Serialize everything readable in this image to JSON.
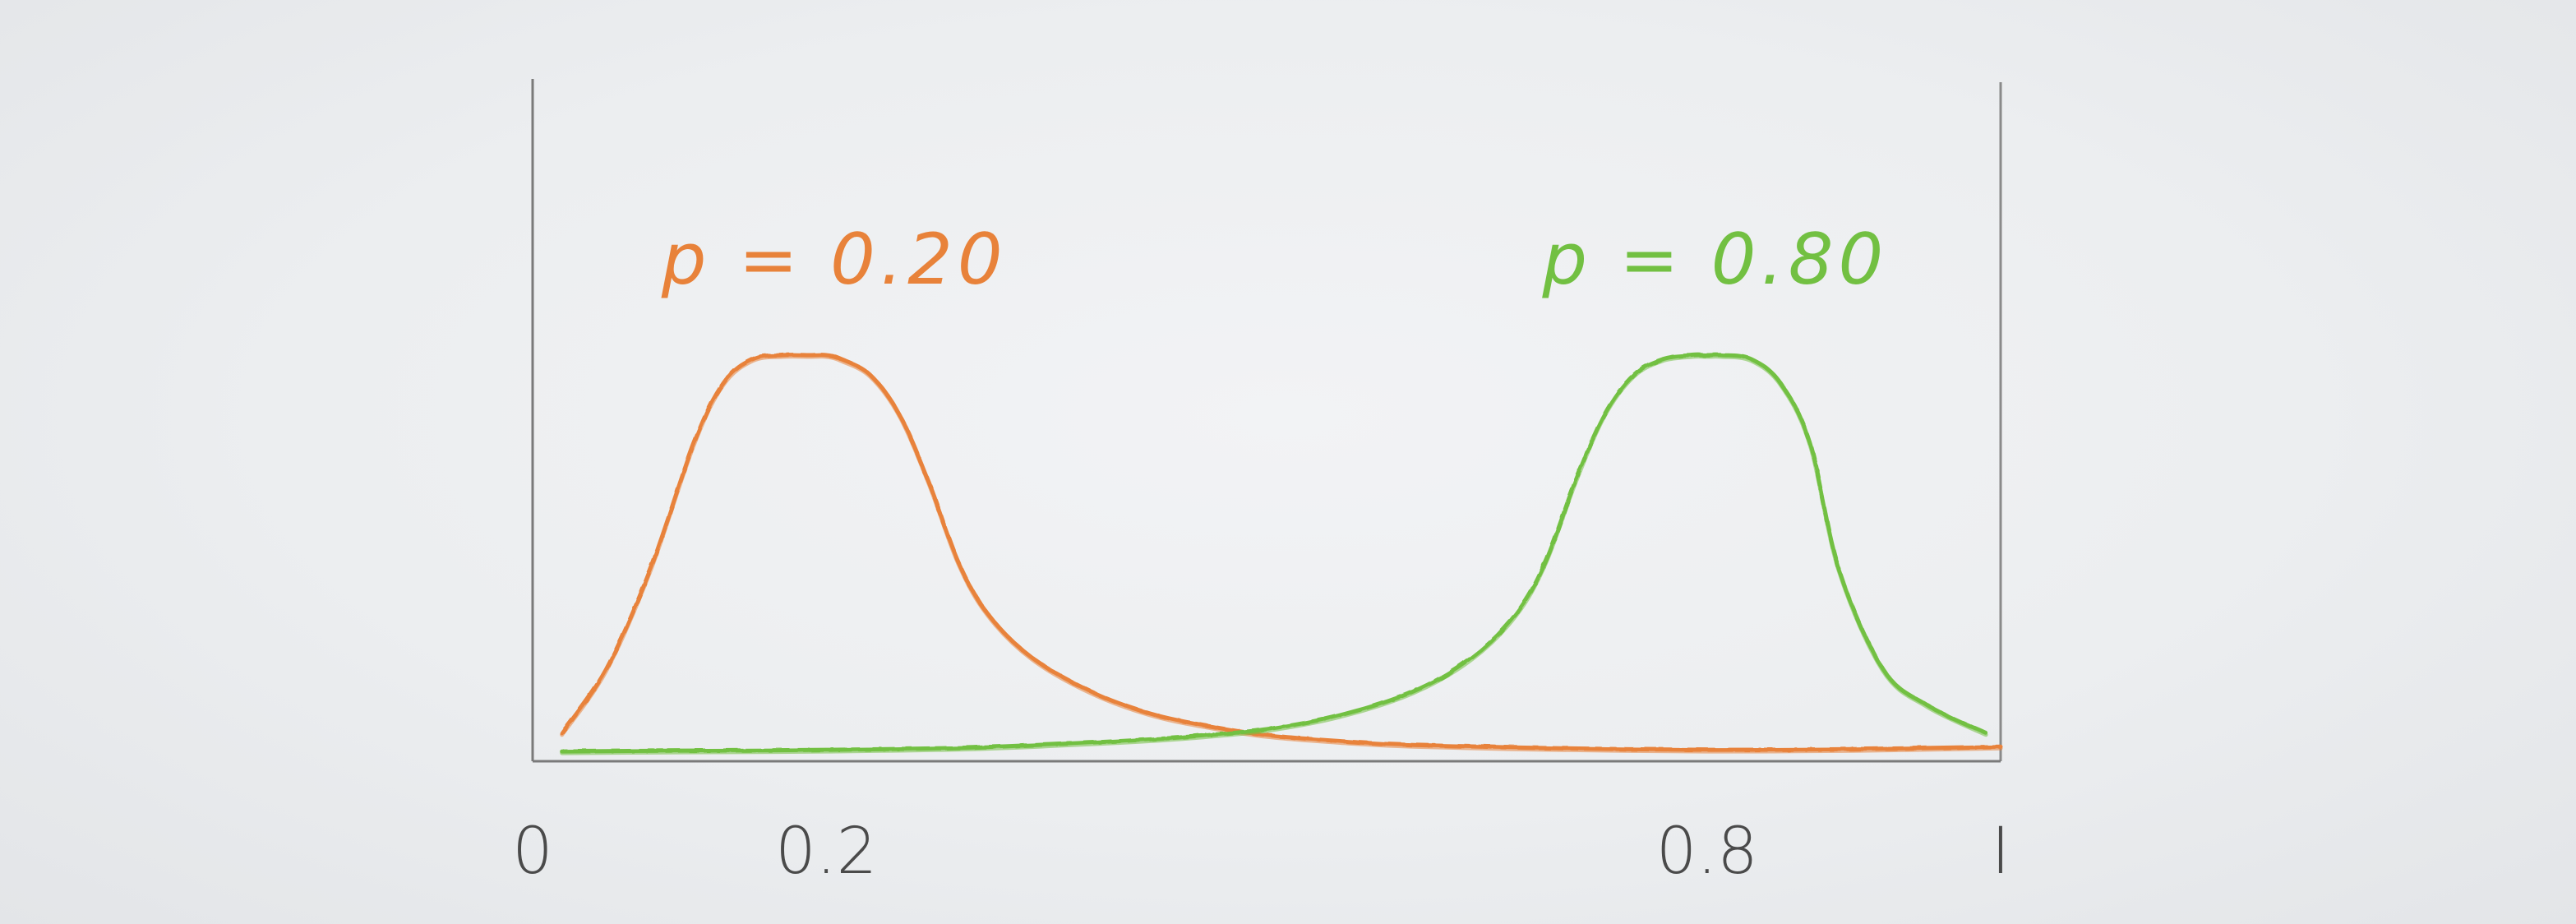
{
  "chart_data": {
    "type": "line",
    "title": "",
    "xlabel": "",
    "ylabel": "",
    "xlim": [
      0,
      1
    ],
    "ylim": [
      0,
      1.1
    ],
    "grid": false,
    "x_ticks": [
      {
        "value": 0,
        "label": "0"
      },
      {
        "value": 0.2,
        "label": "0.2"
      },
      {
        "value": 0.8,
        "label": "0.8"
      },
      {
        "value": 1,
        "label": "I"
      }
    ],
    "series": [
      {
        "name": "p = 0.20",
        "color": "#e8823a",
        "peak_x": 0.2,
        "x": [
          0.02,
          0.05,
          0.08,
          0.11,
          0.13,
          0.15,
          0.17,
          0.19,
          0.2,
          0.21,
          0.23,
          0.25,
          0.27,
          0.29,
          0.31,
          0.34,
          0.38,
          0.42,
          0.46,
          0.5,
          0.55,
          0.6,
          0.7,
          0.8,
          0.9,
          1.0
        ],
        "y": [
          0.05,
          0.21,
          0.46,
          0.78,
          0.93,
          0.99,
          1.0,
          1.0,
          1.0,
          0.99,
          0.95,
          0.85,
          0.68,
          0.48,
          0.35,
          0.24,
          0.155,
          0.1,
          0.068,
          0.045,
          0.03,
          0.02,
          0.012,
          0.008,
          0.01,
          0.016
        ]
      },
      {
        "name": "p = 0.80",
        "color": "#72c042",
        "peak_x": 0.8,
        "x": [
          0.02,
          0.1,
          0.2,
          0.3,
          0.4,
          0.45,
          0.5,
          0.55,
          0.6,
          0.64,
          0.67,
          0.69,
          0.71,
          0.73,
          0.75,
          0.77,
          0.79,
          0.8,
          0.81,
          0.83,
          0.85,
          0.87,
          0.89,
          0.92,
          0.95,
          0.99
        ],
        "y": [
          0.004,
          0.006,
          0.008,
          0.014,
          0.03,
          0.042,
          0.06,
          0.095,
          0.155,
          0.24,
          0.35,
          0.48,
          0.68,
          0.85,
          0.95,
          0.99,
          1.0,
          1.0,
          1.0,
          0.99,
          0.93,
          0.78,
          0.46,
          0.21,
          0.12,
          0.05
        ]
      }
    ]
  }
}
